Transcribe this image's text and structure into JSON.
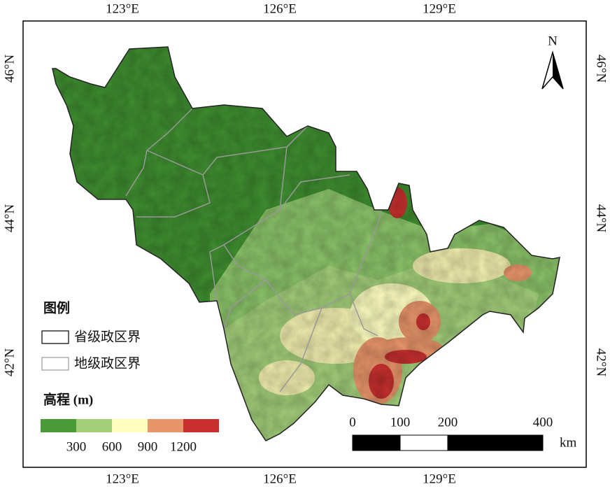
{
  "map": {
    "graticule": {
      "longitudes": [
        "123°E",
        "126°E",
        "129°E"
      ],
      "latitudes": [
        "46°N",
        "44°N",
        "42°N"
      ]
    },
    "north": "N",
    "legend": {
      "title": "图例",
      "items": [
        "省级政区界",
        "地级政区界"
      ],
      "elevation": {
        "title": "高程 (m)",
        "breaks": [
          300,
          600,
          900,
          1200
        ],
        "colors": [
          "#4a9a3a",
          "#a3cf7a",
          "#fefec0",
          "#e8956a",
          "#c8302e"
        ]
      }
    },
    "scale_bar": {
      "ticks": [
        0,
        100,
        200,
        400
      ],
      "unit": "km"
    }
  }
}
